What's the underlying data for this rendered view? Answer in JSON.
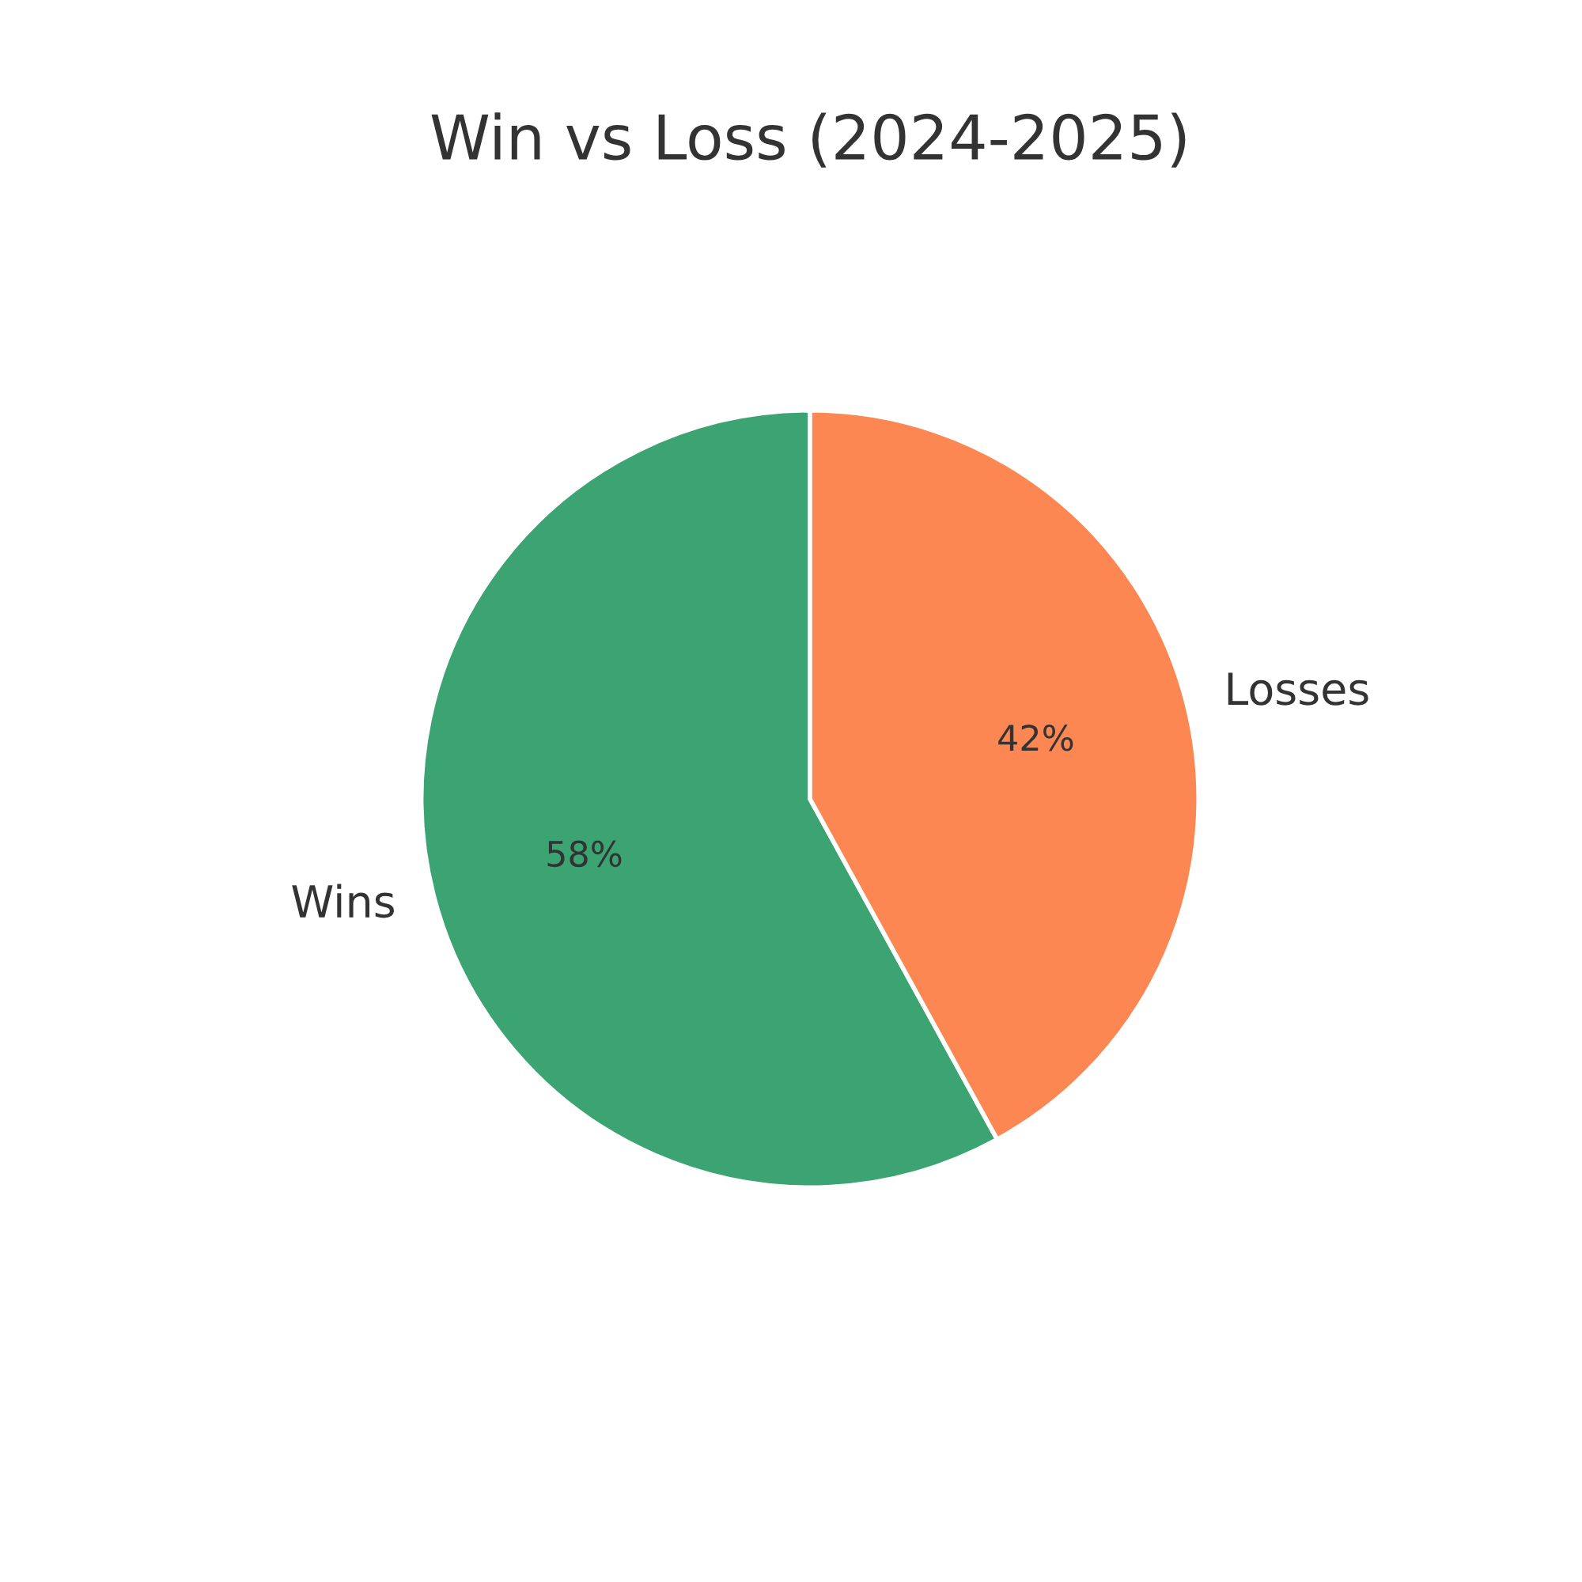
{
  "chart_data": {
    "type": "pie",
    "title": "Win vs Loss (2024-2025)",
    "categories": [
      "Wins",
      "Losses"
    ],
    "values": [
      58,
      42
    ],
    "colors": [
      "#3ca372",
      "#fc8753"
    ],
    "value_labels": [
      "58%",
      "42%"
    ]
  }
}
